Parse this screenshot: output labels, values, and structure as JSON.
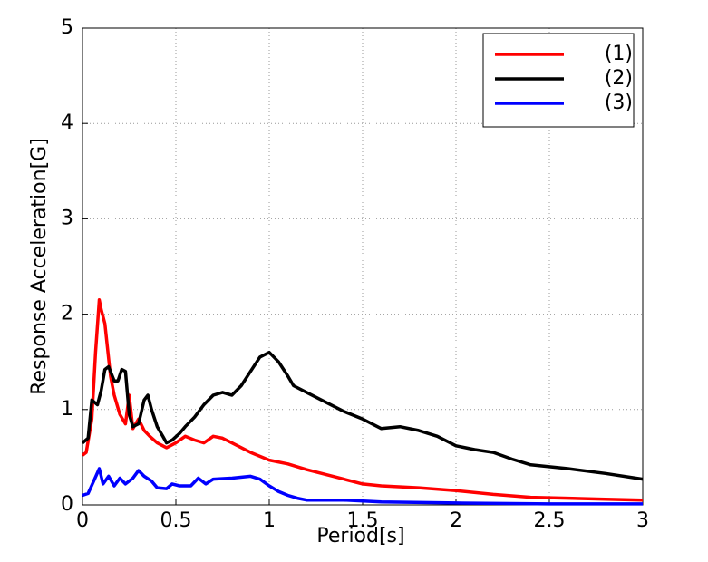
{
  "chart_data": {
    "type": "line",
    "xlabel": "Period[s]",
    "ylabel": "Response Acceleration[G]",
    "xlim": [
      0,
      3
    ],
    "ylim": [
      0,
      5
    ],
    "xticks": [
      0,
      0.5,
      1,
      1.5,
      2,
      2.5,
      3
    ],
    "yticks": [
      0,
      1,
      2,
      3,
      4,
      5
    ],
    "grid": true,
    "legend": "upper right",
    "series": [
      {
        "name": "(1)",
        "color": "#ff0000",
        "x": [
          0,
          0.02,
          0.05,
          0.07,
          0.09,
          0.1,
          0.12,
          0.15,
          0.17,
          0.2,
          0.23,
          0.25,
          0.27,
          0.3,
          0.33,
          0.36,
          0.4,
          0.45,
          0.5,
          0.55,
          0.6,
          0.65,
          0.7,
          0.75,
          0.8,
          0.9,
          1.0,
          1.1,
          1.2,
          1.3,
          1.4,
          1.5,
          1.6,
          1.8,
          2.0,
          2.2,
          2.4,
          2.6,
          2.8,
          3.0
        ],
        "values": [
          0.52,
          0.55,
          0.9,
          1.6,
          2.15,
          2.05,
          1.9,
          1.35,
          1.15,
          0.95,
          0.85,
          1.15,
          0.8,
          0.9,
          0.78,
          0.72,
          0.65,
          0.6,
          0.65,
          0.72,
          0.68,
          0.65,
          0.72,
          0.7,
          0.65,
          0.55,
          0.47,
          0.43,
          0.37,
          0.32,
          0.27,
          0.22,
          0.2,
          0.18,
          0.15,
          0.11,
          0.08,
          0.07,
          0.06,
          0.05
        ]
      },
      {
        "name": "(2)",
        "color": "#000000",
        "x": [
          0,
          0.03,
          0.05,
          0.08,
          0.1,
          0.12,
          0.14,
          0.17,
          0.19,
          0.21,
          0.23,
          0.25,
          0.27,
          0.3,
          0.33,
          0.35,
          0.37,
          0.4,
          0.43,
          0.45,
          0.48,
          0.52,
          0.55,
          0.6,
          0.65,
          0.7,
          0.75,
          0.8,
          0.85,
          0.9,
          0.95,
          1.0,
          1.05,
          1.1,
          1.13,
          1.2,
          1.3,
          1.4,
          1.5,
          1.6,
          1.7,
          1.8,
          1.9,
          2.0,
          2.1,
          2.2,
          2.3,
          2.4,
          2.6,
          2.8,
          3.0
        ],
        "values": [
          0.65,
          0.7,
          1.1,
          1.05,
          1.2,
          1.42,
          1.45,
          1.3,
          1.3,
          1.42,
          1.4,
          0.95,
          0.82,
          0.85,
          1.1,
          1.15,
          1.0,
          0.82,
          0.72,
          0.65,
          0.68,
          0.75,
          0.82,
          0.92,
          1.05,
          1.15,
          1.18,
          1.15,
          1.25,
          1.4,
          1.55,
          1.6,
          1.5,
          1.35,
          1.25,
          1.18,
          1.08,
          0.98,
          0.9,
          0.8,
          0.82,
          0.78,
          0.72,
          0.62,
          0.58,
          0.55,
          0.48,
          0.42,
          0.38,
          0.33,
          0.27
        ]
      },
      {
        "name": "(3)",
        "color": "#0000ff",
        "x": [
          0,
          0.03,
          0.06,
          0.09,
          0.11,
          0.14,
          0.17,
          0.2,
          0.23,
          0.27,
          0.3,
          0.33,
          0.37,
          0.4,
          0.45,
          0.48,
          0.52,
          0.58,
          0.62,
          0.66,
          0.7,
          0.8,
          0.9,
          0.95,
          1.0,
          1.05,
          1.1,
          1.15,
          1.2,
          1.4,
          1.6,
          2.0,
          2.5,
          3.0
        ],
        "values": [
          0.1,
          0.12,
          0.25,
          0.38,
          0.22,
          0.3,
          0.2,
          0.28,
          0.22,
          0.28,
          0.36,
          0.3,
          0.25,
          0.18,
          0.17,
          0.22,
          0.2,
          0.2,
          0.28,
          0.22,
          0.27,
          0.28,
          0.3,
          0.27,
          0.2,
          0.14,
          0.1,
          0.07,
          0.05,
          0.05,
          0.03,
          0.02,
          0.01,
          0.01
        ]
      }
    ]
  }
}
